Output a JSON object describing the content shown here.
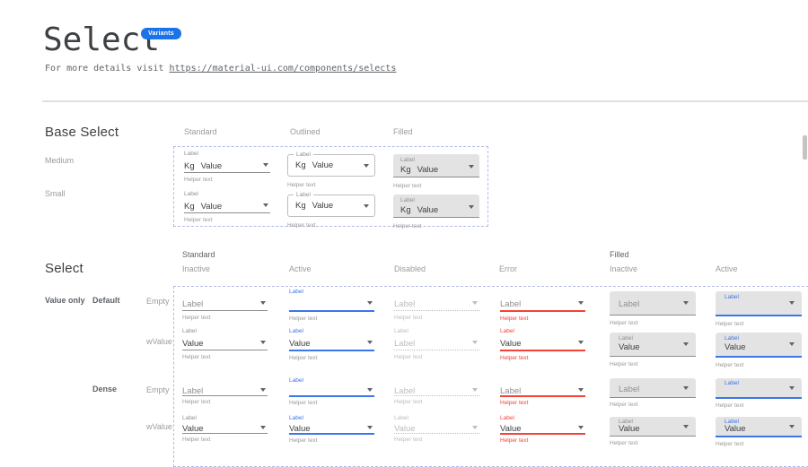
{
  "header": {
    "title": "Select",
    "badge": "Variants",
    "subtitle_prefix": "For more details visit ",
    "subtitle_link": "https://material-ui.com/components/selects"
  },
  "colors": {
    "accent_blue": "#3d76e8",
    "badge_blue": "#1a73e8",
    "error_red": "#f44336",
    "filled_bg": "#e3e3e3",
    "dashed_border": "#b4bbe8",
    "underline_gray": "#8c8c8c",
    "text_primary": "#3c4043",
    "text_secondary": "#8f8f8f",
    "text_disabled": "#bdbdbd",
    "helper_gray": "#9a9a9a",
    "divider_gray": "#e0e0e0",
    "heading_gray": "#3c4043",
    "muted_header_gray": "#9b9b9b",
    "strong_label_gray": "#5f6368",
    "scrollbar_gray": "#c4c4c4"
  },
  "base_select": {
    "heading": "Base Select",
    "column_headers": [
      "Standard",
      "Outlined",
      "Filled"
    ],
    "row_headers": [
      "Medium",
      "Small"
    ],
    "cell": {
      "label": "Label",
      "adornment": "Kg",
      "value": "Value",
      "helper": "Helper text"
    }
  },
  "select_grid": {
    "heading": "Select",
    "groups": [
      {
        "label": "Standard",
        "column_headers": [
          "Inactive",
          "Active",
          "Disabled",
          "Error"
        ]
      },
      {
        "label": "Filled",
        "column_headers": [
          "Inactive",
          "Active"
        ]
      }
    ],
    "row_label_value_only": "Value only",
    "size_labels": [
      "Default",
      "Dense"
    ],
    "variant_labels": [
      "Empty",
      "wValue"
    ],
    "columns": [
      {
        "variant": "standard",
        "state": "inactive"
      },
      {
        "variant": "standard",
        "state": "active"
      },
      {
        "variant": "standard",
        "state": "disabled"
      },
      {
        "variant": "standard",
        "state": "error"
      },
      {
        "variant": "filled",
        "state": "inactive"
      },
      {
        "variant": "filled",
        "state": "active"
      }
    ],
    "rows": [
      {
        "size": "default",
        "kind": "empty",
        "cells": [
          {
            "float_label": "",
            "value": "Label",
            "value_muted": true,
            "helper": "Helper text"
          },
          {
            "float_label": "Label",
            "value": "",
            "helper": "Helper text"
          },
          {
            "float_label": "",
            "value": "Label",
            "value_muted": true,
            "helper": "Helper text"
          },
          {
            "float_label": "",
            "value": "Label",
            "value_muted": true,
            "helper": "Helper text"
          },
          {
            "float_label": "",
            "value": "Label",
            "value_muted": true,
            "helper": "Helper text"
          },
          {
            "float_label": "Label",
            "value": "",
            "helper": "Helper text"
          }
        ]
      },
      {
        "size": "default",
        "kind": "wvalue",
        "cells": [
          {
            "float_label": "Label",
            "value": "Value",
            "helper": "Helper text"
          },
          {
            "float_label": "Label",
            "value": "Value",
            "helper": "Helper text"
          },
          {
            "float_label": "Label",
            "value": "Label",
            "value_muted": true,
            "helper": "Helper text"
          },
          {
            "float_label": "Label",
            "value": "Value",
            "helper": "Helper text"
          },
          {
            "float_label": "Label",
            "value": "Value",
            "helper": "Helper text"
          },
          {
            "float_label": "Label",
            "value": "Value",
            "helper": "Helper text"
          }
        ]
      },
      {
        "size": "dense",
        "kind": "empty",
        "cells": [
          {
            "float_label": "",
            "value": "Label",
            "value_muted": true,
            "helper": "Helper text"
          },
          {
            "float_label": "Label",
            "value": "",
            "helper": "Helper text"
          },
          {
            "float_label": "",
            "value": "Label",
            "value_muted": true,
            "helper": "Helper text"
          },
          {
            "float_label": "",
            "value": "Label",
            "value_muted": true,
            "helper": "Helper text"
          },
          {
            "float_label": "",
            "value": "Label",
            "value_muted": true,
            "helper": "Helper text"
          },
          {
            "float_label": "Label",
            "value": "",
            "helper": "Helper text"
          }
        ]
      },
      {
        "size": "dense",
        "kind": "wvalue",
        "cells": [
          {
            "float_label": "Label",
            "value": "Value",
            "helper": "Helper text"
          },
          {
            "float_label": "Label",
            "value": "Value",
            "helper": "Helper text"
          },
          {
            "float_label": "Label",
            "value": "Value",
            "value_muted": true,
            "helper": "Helper text"
          },
          {
            "float_label": "Label",
            "value": "Value",
            "helper": "Helper text"
          },
          {
            "float_label": "Label",
            "value": "Value",
            "helper": "Helper text"
          },
          {
            "float_label": "Label",
            "value": "Value",
            "helper": "Helper text"
          }
        ]
      }
    ]
  }
}
